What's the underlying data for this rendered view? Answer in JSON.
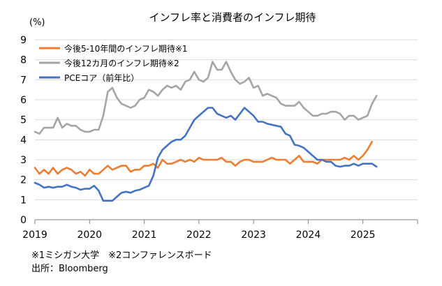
{
  "chart_data": {
    "type": "line",
    "title": "インフレ率と消費者のインフレ期待",
    "ylabel": "(%)",
    "xlabel": "",
    "ylim": [
      0,
      9
    ],
    "xlim": [
      2019,
      2026
    ],
    "y_ticks": [
      "0",
      "1",
      "2",
      "3",
      "4",
      "5",
      "6",
      "7",
      "8",
      "9"
    ],
    "x_ticks": [
      {
        "x": 2019,
        "label": "2019"
      },
      {
        "x": 2020,
        "label": "2020"
      },
      {
        "x": 2021,
        "label": "2021"
      },
      {
        "x": 2022,
        "label": "2022"
      },
      {
        "x": 2023,
        "label": "2023"
      },
      {
        "x": 2024,
        "label": "2024"
      },
      {
        "x": 2025,
        "label": "2025"
      }
    ],
    "grid": "horizontal",
    "legend": "top-left",
    "series": [
      {
        "name": "今後5-10年間のインフレ期待※1",
        "color": "#ED7D31",
        "start": 2019.0,
        "values": [
          2.6,
          2.3,
          2.5,
          2.3,
          2.6,
          2.3,
          2.5,
          2.6,
          2.5,
          2.3,
          2.4,
          2.2,
          2.5,
          2.3,
          2.3,
          2.5,
          2.7,
          2.5,
          2.6,
          2.7,
          2.7,
          2.4,
          2.5,
          2.5,
          2.7,
          2.7,
          2.8,
          2.6,
          3.0,
          2.8,
          2.8,
          2.9,
          3.0,
          2.9,
          3.0,
          2.9,
          3.1,
          3.0,
          3.0,
          3.0,
          3.0,
          3.1,
          2.9,
          2.9,
          2.7,
          2.9,
          3.0,
          3.0,
          2.9,
          2.9,
          2.9,
          3.0,
          3.1,
          3.0,
          3.0,
          3.0,
          2.8,
          3.0,
          3.2,
          2.9,
          2.9,
          2.9,
          2.8,
          3.0,
          3.0,
          3.0,
          3.0,
          3.0,
          3.1,
          3.0,
          3.2,
          3.0,
          3.2,
          3.5,
          3.9
        ]
      },
      {
        "name": "今後12カ月のインフレ期待※2",
        "color": "#A5A5A5",
        "start": 2019.0,
        "values": [
          4.4,
          4.3,
          4.6,
          4.6,
          4.6,
          5.1,
          4.6,
          4.8,
          4.7,
          4.7,
          4.5,
          4.4,
          4.4,
          4.5,
          4.5,
          5.2,
          6.4,
          6.6,
          6.1,
          5.8,
          5.7,
          5.6,
          5.7,
          6.0,
          6.1,
          6.5,
          6.4,
          6.2,
          6.5,
          6.7,
          6.6,
          6.7,
          6.5,
          6.9,
          7.0,
          7.4,
          7.0,
          6.9,
          7.1,
          7.9,
          7.5,
          7.5,
          7.9,
          7.4,
          7.0,
          6.8,
          6.9,
          7.1,
          6.6,
          6.7,
          6.2,
          6.3,
          6.2,
          6.1,
          5.8,
          5.7,
          5.7,
          5.7,
          5.9,
          5.6,
          5.4,
          5.2,
          5.2,
          5.3,
          5.3,
          5.4,
          5.4,
          5.3,
          5.0,
          5.2,
          5.2,
          5.0,
          5.1,
          5.2,
          5.8,
          6.2
        ]
      },
      {
        "name": "PCEコア（前年比）",
        "color": "#4472C4",
        "start": 2019.0,
        "values": [
          1.85,
          1.75,
          1.6,
          1.65,
          1.6,
          1.65,
          1.65,
          1.75,
          1.65,
          1.6,
          1.5,
          1.55,
          1.55,
          1.7,
          1.45,
          0.95,
          0.95,
          0.95,
          1.15,
          1.35,
          1.4,
          1.35,
          1.45,
          1.5,
          1.6,
          1.7,
          2.2,
          3.1,
          3.5,
          3.7,
          3.9,
          4.0,
          4.0,
          4.2,
          4.6,
          5.0,
          5.2,
          5.4,
          5.6,
          5.6,
          5.3,
          5.2,
          5.1,
          5.2,
          5.0,
          5.3,
          5.6,
          5.4,
          5.2,
          4.9,
          4.9,
          4.8,
          4.75,
          4.7,
          4.65,
          4.3,
          4.2,
          3.75,
          3.7,
          3.6,
          3.4,
          3.2,
          3.0,
          3.0,
          2.9,
          2.9,
          2.7,
          2.65,
          2.7,
          2.7,
          2.8,
          2.7,
          2.8,
          2.8,
          2.8,
          2.65
        ]
      }
    ]
  },
  "notes": {
    "footnote": "※1ミシガン大学　※2コンファレンスボード",
    "source": "出所：Bloomberg"
  }
}
